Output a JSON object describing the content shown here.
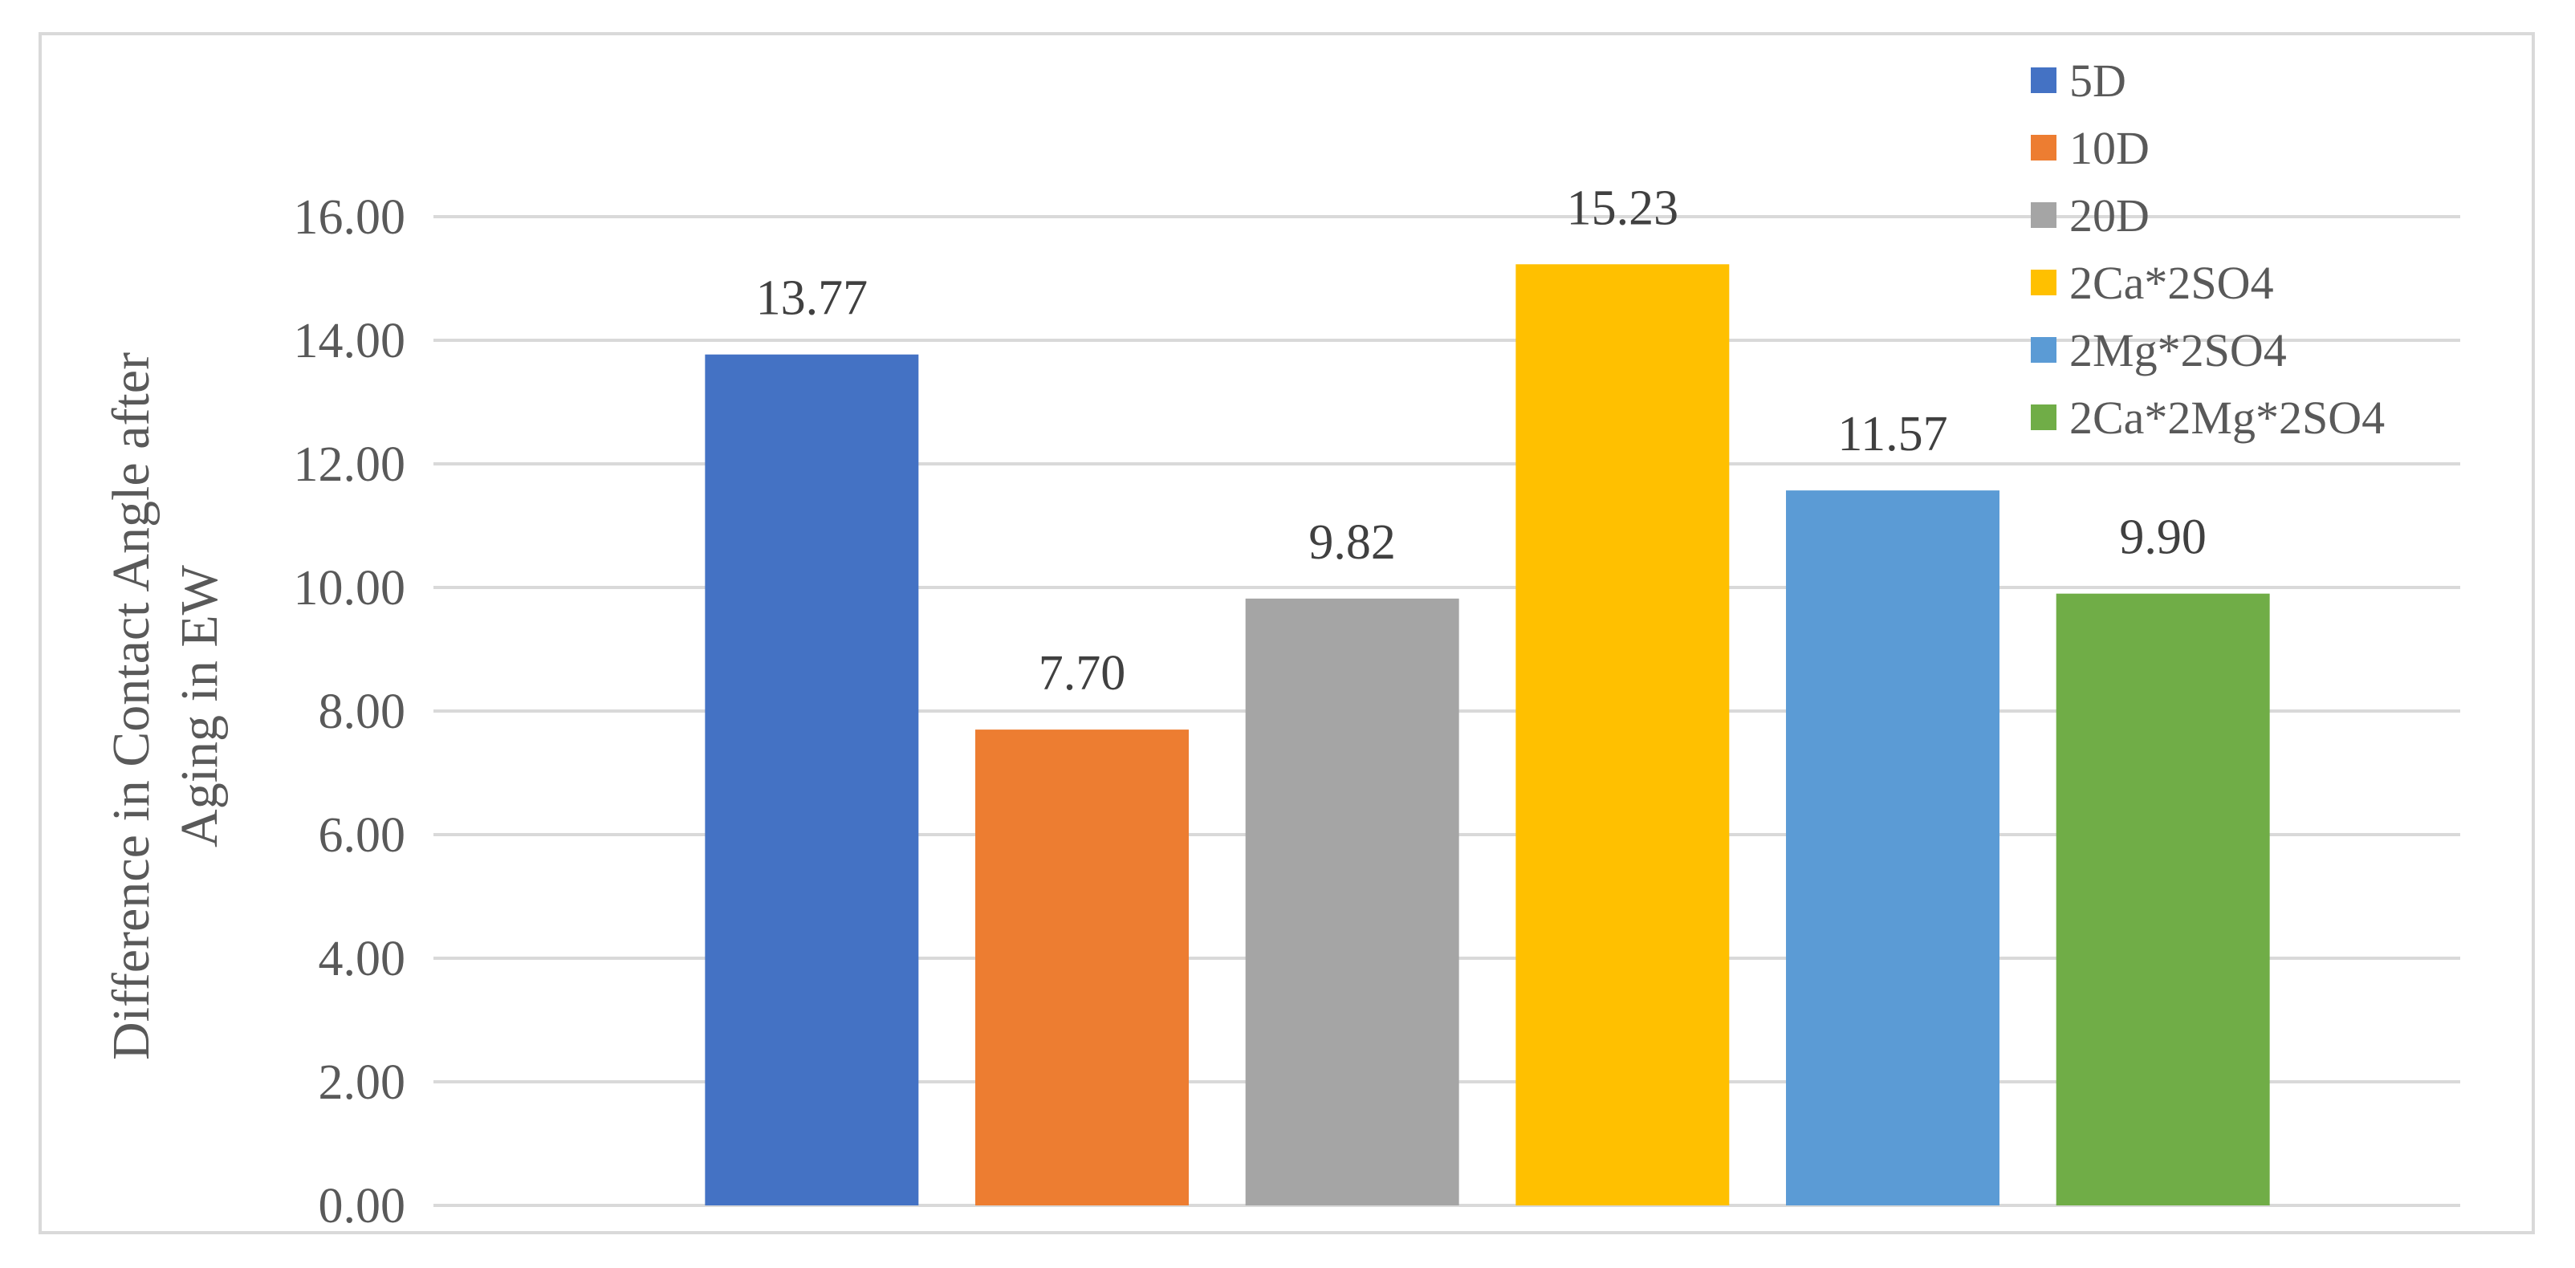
{
  "chart_data": {
    "type": "bar",
    "title": "",
    "ylabel_lines": [
      "Difference in Contact Angle after",
      "Aging in EW"
    ],
    "xlabel": "",
    "ylim": [
      0,
      16
    ],
    "yticks": [
      "0.00",
      "2.00",
      "4.00",
      "6.00",
      "8.00",
      "10.00",
      "12.00",
      "14.00",
      "16.00"
    ],
    "grid": true,
    "legend_position": "top-right",
    "series": [
      {
        "name": "5D",
        "value": 13.77,
        "label": "13.77",
        "color": "#4472c4"
      },
      {
        "name": "10D",
        "value": 7.7,
        "label": "7.70",
        "color": "#ed7d31"
      },
      {
        "name": "20D",
        "value": 9.82,
        "label": "9.82",
        "color": "#a5a5a5"
      },
      {
        "name": "2Ca*2SO4",
        "value": 15.23,
        "label": "15.23",
        "color": "#ffc000"
      },
      {
        "name": "2Mg*2SO4",
        "value": 11.57,
        "label": "11.57",
        "color": "#5b9bd5"
      },
      {
        "name": "2Ca*2Mg*2SO4",
        "value": 9.9,
        "label": "9.90",
        "color": "#70ad47"
      }
    ]
  }
}
